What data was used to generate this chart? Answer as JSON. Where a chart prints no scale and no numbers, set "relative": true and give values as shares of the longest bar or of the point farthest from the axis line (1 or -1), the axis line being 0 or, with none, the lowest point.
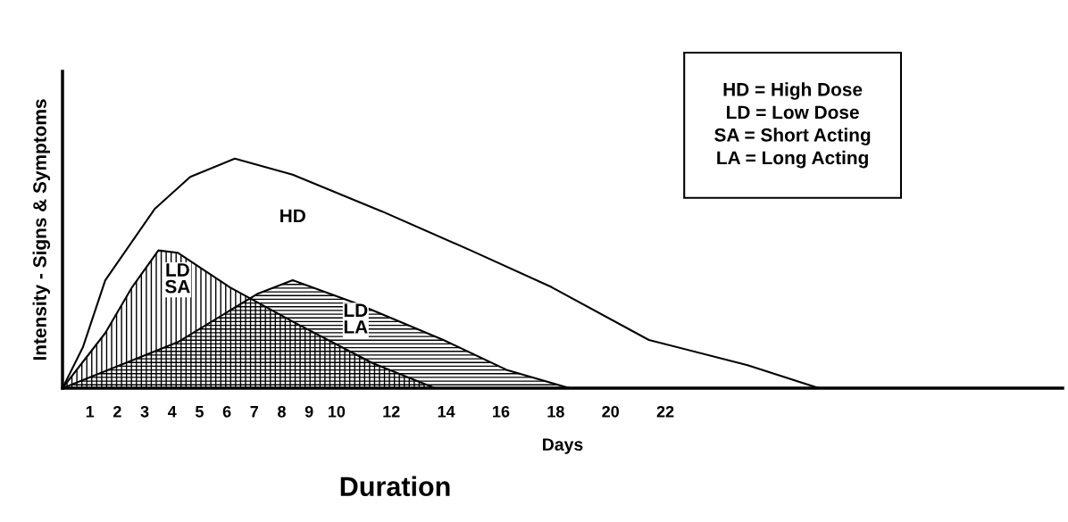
{
  "chart_data": {
    "type": "area",
    "relative": true,
    "xlabel": "Days",
    "ylabel": "Intensity - Signs & Symptoms",
    "title": "Duration",
    "tick_labels": "x",
    "grid": false,
    "legend": false,
    "xlim": [
      0,
      36.5
    ],
    "xticks": [
      1,
      2,
      3,
      4,
      5,
      6,
      7,
      8,
      9,
      10,
      12,
      14,
      16,
      18,
      20,
      22
    ],
    "series": [
      {
        "name": "HD",
        "color": "#000000",
        "x": [
          0,
          0.75,
          1.56,
          3.36,
          4.66,
          6.29,
          8.4,
          11.66,
          14.9,
          17.85,
          21.4,
          25.0,
          27.6
        ],
        "values": [
          0,
          0.18,
          0.47,
          0.78,
          0.92,
          1,
          0.93,
          0.77,
          0.6,
          0.44,
          0.21,
          0.1,
          0
        ]
      },
      {
        "name": "LD\nSA",
        "color": "#000000",
        "x": [
          0,
          1.56,
          2.54,
          3.5,
          4.2,
          6.1,
          8.4,
          11.3,
          13.6
        ],
        "values": [
          0,
          0.24,
          0.44,
          0.6,
          0.59,
          0.44,
          0.29,
          0.11,
          0
        ]
      },
      {
        "name": "LD\nLA",
        "color": "#000000",
        "x": [
          0,
          4.2,
          7.1,
          8.4,
          10.7,
          13.9,
          16.2,
          18.5
        ],
        "values": [
          0,
          0.2,
          0.41,
          0.47,
          0.37,
          0.21,
          0.08,
          0
        ]
      }
    ],
    "annotations": [
      "HD = High Dose",
      "LD = Low Dose",
      "SA = Short Acting",
      "LA = Long Acting"
    ]
  }
}
